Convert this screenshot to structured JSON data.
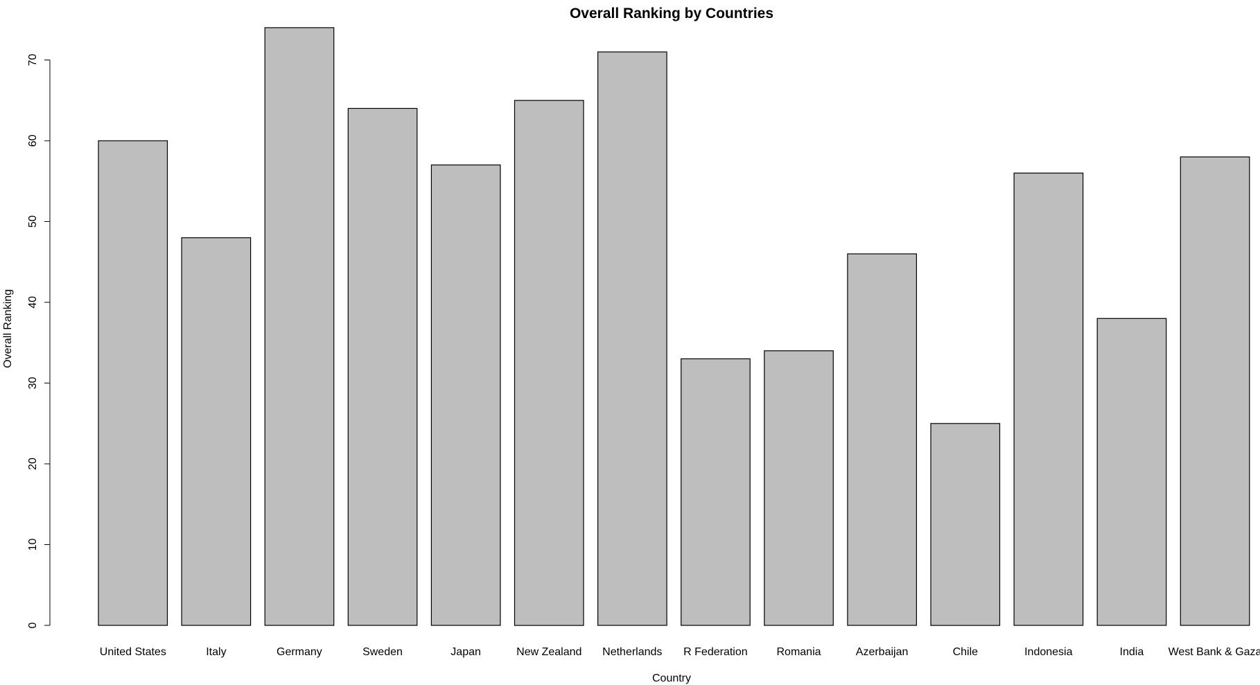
{
  "chart_data": {
    "type": "bar",
    "title": "Overall Ranking by Countries",
    "xlabel": "Country",
    "ylabel": "Overall Ranking",
    "categories": [
      "United States",
      "Italy",
      "Germany",
      "Sweden",
      "Japan",
      "New Zealand",
      "Netherlands",
      "R Federation",
      "Romania",
      "Azerbaijan",
      "Chile",
      "Indonesia",
      "India",
      "West Bank & Gaza"
    ],
    "values": [
      60,
      48,
      74,
      64,
      57,
      65,
      71,
      33,
      34,
      46,
      25,
      56,
      38,
      58
    ],
    "yticks": [
      0,
      10,
      20,
      30,
      40,
      50,
      60,
      70
    ],
    "ylim": [
      0,
      74
    ],
    "grid": false,
    "legend": "none",
    "colors": {
      "bar_fill": "#bebebe",
      "bar_stroke": "#000000",
      "axis": "#000000",
      "background": "#ffffff"
    }
  }
}
